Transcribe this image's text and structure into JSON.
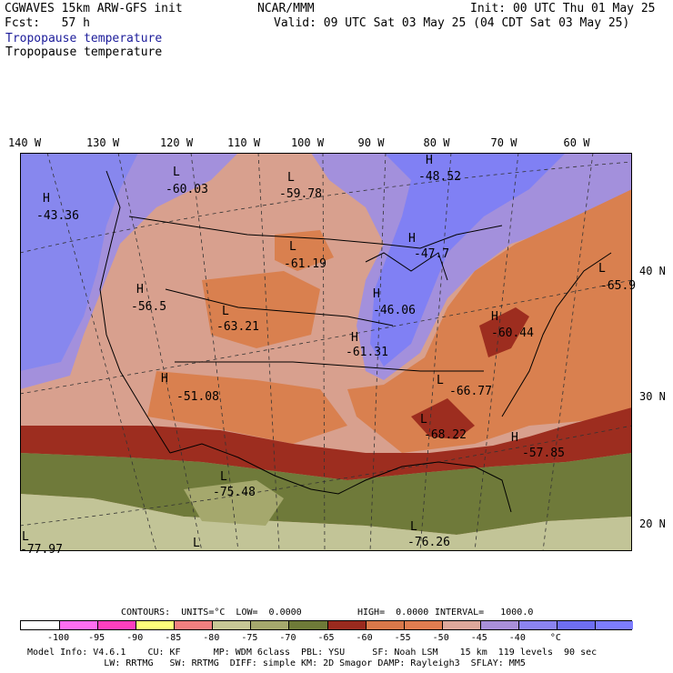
{
  "header": {
    "title": "CGWAVES 15km ARW-GFS init",
    "forecast": "Fcst:   57 h",
    "org": "NCAR/MMM",
    "init": "Init: 00 UTC Thu 01 May 25",
    "valid": "Valid: 09 UTC Sat 03 May 25 (04 CDT Sat 03 May 25)",
    "field_title_1": "Tropopause temperature",
    "field_title_2": "Tropopause temperature"
  },
  "longitude_labels": [
    "140 W",
    "130 W",
    "120 W",
    "110 W",
    "100 W",
    "90 W",
    "80 W",
    "70 W",
    "60 W"
  ],
  "latitude_labels": [
    "40 N",
    "30 N",
    "20 N"
  ],
  "map_labels": [
    {
      "hl": "H",
      "value": "-43.36"
    },
    {
      "hl": "L",
      "value": "-60.03"
    },
    {
      "hl": "L",
      "value": "-59.78"
    },
    {
      "hl": "H",
      "value": "-48.52"
    },
    {
      "hl": "L",
      "value": "-61.19"
    },
    {
      "hl": "H",
      "value": "-47.7"
    },
    {
      "hl": "H",
      "value": "-56.5"
    },
    {
      "hl": "L",
      "value": "-63.21"
    },
    {
      "hl": "H",
      "value": "-46.06"
    },
    {
      "hl": "H",
      "value": "-61.31"
    },
    {
      "hl": "L",
      "value": "-65.9"
    },
    {
      "hl": "H",
      "value": "-60.44"
    },
    {
      "hl": "H",
      "value": "-51.08"
    },
    {
      "hl": "L",
      "value": "-66.77"
    },
    {
      "hl": "L",
      "value": "-68.22"
    },
    {
      "hl": "H",
      "value": "-57.85"
    },
    {
      "hl": "L",
      "value": "-75.48"
    },
    {
      "hl": "L",
      "value": "-77.97"
    },
    {
      "hl": "L",
      "value": "-76.26"
    },
    {
      "hl": "L",
      "value": ""
    }
  ],
  "contours": {
    "units_label": "CONTOURS:  UNITS=°C  LOW=  0.0000",
    "high_label": "HIGH=  0.0000",
    "interval_label": "INTERVAL=   1000.0"
  },
  "colorbar": {
    "colors": [
      "#ffffff",
      "#ff6ef0",
      "#ff3fbe",
      "#ffff7a",
      "#f08080",
      "#c8c896",
      "#a5a86d",
      "#6e7a38",
      "#9a2a1e",
      "#d8784a",
      "#e07d50",
      "#dea89b",
      "#a98fd8",
      "#8b83f0",
      "#6e6ef2",
      "#7d7dff"
    ],
    "labels": [
      "-100",
      "-95",
      "-90",
      "-85",
      "-80",
      "-75",
      "-70",
      "-65",
      "-60",
      "-55",
      "-50",
      "-45",
      "-40",
      "°C"
    ]
  },
  "footer": {
    "line1": "Model Info: V4.6.1    CU: KF      MP: WDM 6class  PBL: YSU     SF: Noah LSM    15 km  119 levels  90 sec",
    "line2": "              LW: RRTMG   SW: RRTMG  DIFF: simple KM: 2D Smagor DAMP: Rayleigh3  SFLAY: MM5"
  }
}
